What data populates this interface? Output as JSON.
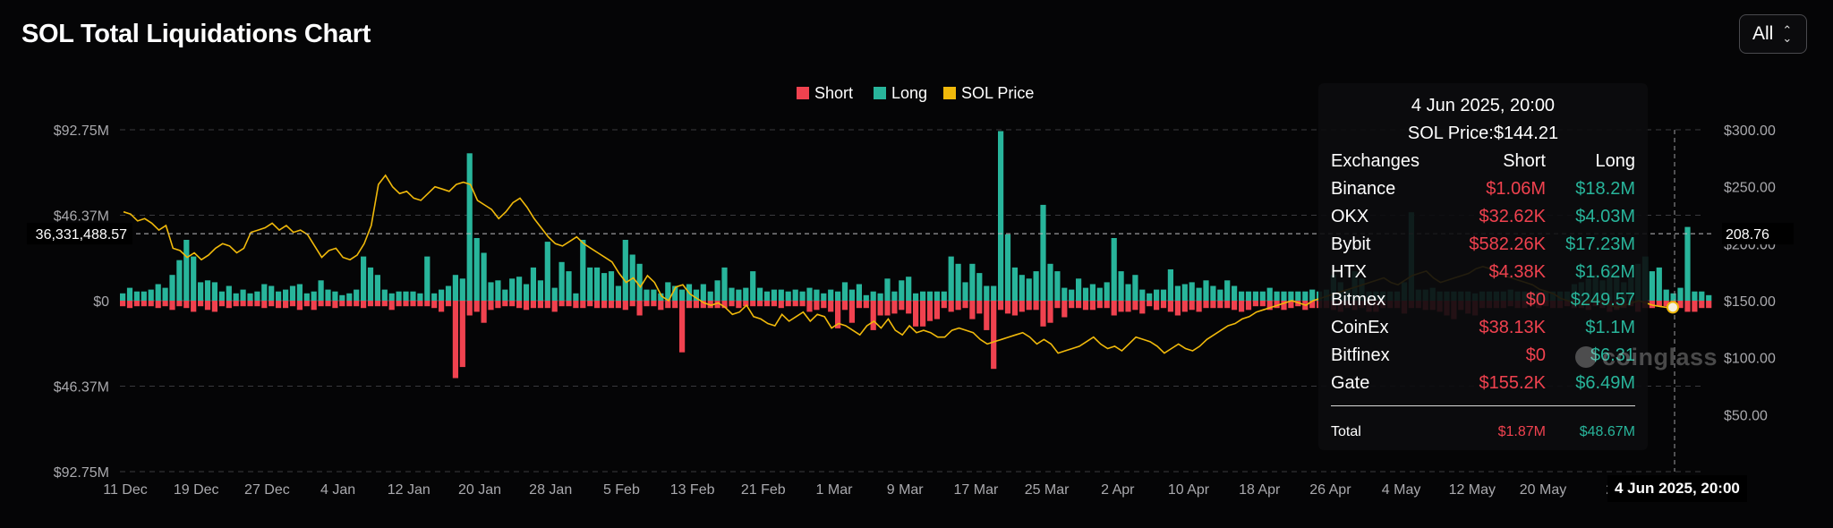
{
  "header": {
    "title": "SOL Total Liquidations Chart",
    "range_label": "All"
  },
  "colors": {
    "short": "#f0424f",
    "long": "#28b59b",
    "price": "#f0b90b",
    "grid": "#3a3a3e",
    "axis_text": "#a9a9ad"
  },
  "legend": [
    {
      "label": "Short",
      "color": "#f0424f"
    },
    {
      "label": "Long",
      "color": "#28b59b"
    },
    {
      "label": "SOL Price",
      "color": "#f0b90b"
    }
  ],
  "crosshair": {
    "left_value_label": "36,331,488.57",
    "right_value_label": "208.76",
    "x_label": "4 Jun 2025, 20:00"
  },
  "tooltip": {
    "date": "4 Jun 2025, 20:00",
    "price": "SOL Price:$144.21",
    "headers": [
      "Exchanges",
      "Short",
      "Long"
    ],
    "rows": [
      {
        "exchange": "Binance",
        "short": "$1.06M",
        "long": "$18.2M"
      },
      {
        "exchange": "OKX",
        "short": "$32.62K",
        "long": "$4.03M"
      },
      {
        "exchange": "Bybit",
        "short": "$582.26K",
        "long": "$17.23M"
      },
      {
        "exchange": "HTX",
        "short": "$4.38K",
        "long": "$1.62M"
      },
      {
        "exchange": "Bitmex",
        "short": "$0",
        "long": "$249.57"
      },
      {
        "exchange": "CoinEx",
        "short": "$38.13K",
        "long": "$1.1M"
      },
      {
        "exchange": "Bitfinex",
        "short": "$0",
        "long": "$6.31"
      },
      {
        "exchange": "Gate",
        "short": "$155.2K",
        "long": "$6.49M"
      }
    ],
    "total": {
      "label": "Total",
      "short": "$1.87M",
      "long": "$48.67M"
    }
  },
  "watermark": "coinglass",
  "chart_data": {
    "type": "bar",
    "title": "SOL Total Liquidations Chart",
    "left_axis": {
      "ticks": [
        "$92.75M",
        "$46.37M",
        "$0",
        "$46.37M",
        "$92.75M"
      ],
      "range": [
        -92.75,
        92.75
      ],
      "unit": "M USD"
    },
    "right_axis": {
      "ticks": [
        "$300.00",
        "$250.00",
        "$200.00",
        "$150.00",
        "$100.00",
        "$50.00"
      ],
      "range": [
        0,
        300
      ]
    },
    "x_ticks": [
      "11 Dec",
      "19 Dec",
      "27 Dec",
      "4 Jan",
      "12 Jan",
      "20 Jan",
      "28 Jan",
      "5 Feb",
      "13 Feb",
      "21 Feb",
      "1 Mar",
      "9 Mar",
      "17 Mar",
      "25 Mar",
      "2 Apr",
      "10 Apr",
      "18 Apr",
      "26 Apr",
      "4 May",
      "12 May",
      "20 May",
      "28"
    ],
    "x_range": [
      "2024-12-11",
      "2025-06-05"
    ],
    "grid": true,
    "legend_position": "top-center",
    "series": [
      {
        "name": "Long",
        "values": [
          4,
          7,
          5,
          5,
          6,
          9,
          7,
          14,
          22,
          33,
          24,
          10,
          11,
          10,
          5,
          8,
          4,
          6,
          4,
          5,
          9,
          8,
          5,
          6,
          8,
          9,
          4,
          5,
          11,
          6,
          5,
          3,
          4,
          6,
          24,
          18,
          14,
          6,
          4,
          5,
          5,
          5,
          4,
          24,
          4,
          6,
          8,
          14,
          12,
          80,
          34,
          26,
          10,
          11,
          6,
          12,
          13,
          9,
          18,
          11,
          32,
          7,
          21,
          16,
          4,
          33,
          18,
          18,
          15,
          16,
          8,
          33,
          25,
          20,
          6,
          6,
          4,
          10,
          8,
          6,
          9,
          6,
          9,
          5,
          11,
          18,
          7,
          6,
          7,
          16,
          7,
          5,
          6,
          6,
          5,
          6,
          5,
          7,
          6,
          4,
          6,
          5,
          10,
          6,
          9,
          3,
          5,
          4,
          12,
          5,
          11,
          13,
          4,
          5,
          5,
          5,
          5,
          24,
          20,
          10,
          20,
          15,
          8,
          8,
          92,
          36,
          18,
          14,
          12,
          16,
          52,
          20,
          16,
          7,
          6,
          12,
          7,
          9,
          7,
          10,
          34,
          16,
          9,
          14,
          6,
          4,
          6,
          6,
          17,
          8,
          9,
          10,
          7,
          11,
          8,
          6,
          11,
          8,
          5,
          5,
          5,
          5,
          7,
          5,
          5,
          5,
          5,
          5,
          6,
          5,
          6,
          14,
          10,
          6,
          16,
          12,
          5,
          5,
          5,
          5,
          5,
          10,
          48,
          6,
          6,
          7,
          5,
          5,
          5,
          5,
          5,
          4,
          5,
          5,
          5,
          5,
          6,
          5,
          5,
          5,
          5,
          5,
          5,
          5,
          5,
          9,
          10,
          12,
          14,
          11,
          18,
          14,
          10,
          13,
          20,
          24,
          16,
          18,
          6,
          4,
          7,
          40,
          5,
          5,
          3
        ]
      },
      {
        "name": "Short",
        "values": [
          3,
          4,
          3,
          3,
          3,
          4,
          3,
          5,
          3,
          4,
          6,
          3,
          5,
          6,
          3,
          4,
          3,
          3,
          3,
          3,
          4,
          3,
          4,
          4,
          3,
          5,
          3,
          5,
          3,
          3,
          4,
          3,
          3,
          3,
          4,
          3,
          3,
          3,
          5,
          3,
          3,
          3,
          3,
          3,
          4,
          6,
          3,
          42,
          36,
          8,
          6,
          12,
          5,
          4,
          3,
          3,
          4,
          5,
          4,
          4,
          4,
          6,
          3,
          3,
          4,
          4,
          3,
          4,
          4,
          4,
          4,
          5,
          3,
          8,
          3,
          3,
          5,
          4,
          4,
          28,
          4,
          4,
          4,
          4,
          4,
          4,
          3,
          4,
          3,
          3,
          3,
          3,
          3,
          4,
          3,
          3,
          3,
          6,
          5,
          4,
          6,
          15,
          5,
          12,
          4,
          4,
          16,
          8,
          8,
          7,
          5,
          7,
          14,
          14,
          11,
          10,
          4,
          6,
          5,
          4,
          10,
          7,
          16,
          37,
          5,
          7,
          8,
          6,
          5,
          5,
          14,
          12,
          4,
          9,
          4,
          4,
          5,
          5,
          4,
          4,
          8,
          6,
          6,
          5,
          7,
          3,
          5,
          4,
          6,
          8,
          6,
          5,
          6,
          4,
          4,
          4,
          4,
          5,
          6,
          5,
          3,
          3,
          5,
          4,
          5,
          4,
          3,
          5,
          4,
          4,
          4,
          5,
          6,
          4,
          5,
          4,
          6,
          6,
          4,
          4,
          4,
          7,
          4,
          4,
          5,
          5,
          6,
          8,
          10,
          5,
          7,
          8,
          4,
          4,
          4,
          4,
          3,
          4,
          4,
          3,
          4,
          3,
          4,
          4,
          3,
          4,
          4,
          5,
          3,
          4,
          6,
          5,
          4,
          3,
          6,
          4,
          4,
          3,
          3,
          3,
          4,
          6,
          6,
          4,
          4,
          3,
          4,
          3
        ]
      },
      {
        "name": "SOL Price",
        "values": [
          228,
          226,
          220,
          222,
          218,
          212,
          216,
          196,
          194,
          188,
          192,
          186,
          190,
          196,
          200,
          198,
          192,
          196,
          210,
          212,
          214,
          218,
          212,
          216,
          210,
          212,
          208,
          198,
          188,
          194,
          196,
          188,
          186,
          190,
          200,
          216,
          252,
          260,
          250,
          244,
          246,
          240,
          238,
          244,
          250,
          248,
          246,
          252,
          254,
          252,
          238,
          234,
          230,
          222,
          228,
          236,
          240,
          232,
          222,
          214,
          206,
          200,
          198,
          202,
          206,
          200,
          196,
          192,
          188,
          184,
          174,
          166,
          170,
          162,
          172,
          166,
          154,
          150,
          162,
          164,
          156,
          152,
          148,
          146,
          148,
          144,
          138,
          140,
          146,
          136,
          134,
          130,
          128,
          138,
          132,
          136,
          140,
          132,
          138,
          136,
          126,
          130,
          128,
          124,
          120,
          128,
          132,
          126,
          134,
          124,
          120,
          128,
          122,
          124,
          122,
          118,
          118,
          124,
          126,
          124,
          122,
          116,
          112,
          114,
          116,
          118,
          120,
          122,
          118,
          112,
          116,
          112,
          104,
          106,
          108,
          110,
          114,
          118,
          112,
          108,
          110,
          106,
          112,
          118,
          116,
          114,
          110,
          104,
          108,
          112,
          108,
          106,
          110,
          116,
          120,
          124,
          128,
          130,
          134,
          136,
          140,
          142,
          144,
          146,
          148,
          150,
          148,
          146,
          150,
          152,
          154,
          156,
          158,
          160,
          162,
          164,
          166,
          168,
          170,
          166,
          164,
          168,
          172,
          174,
          176,
          170,
          166,
          168,
          170,
          172,
          174,
          178,
          180,
          178,
          176,
          172,
          170,
          168,
          166,
          164,
          160,
          158,
          156,
          152,
          150,
          148,
          146,
          150,
          152,
          148,
          146,
          144,
          146,
          148,
          150,
          148,
          146,
          145,
          144
        ]
      }
    ]
  }
}
